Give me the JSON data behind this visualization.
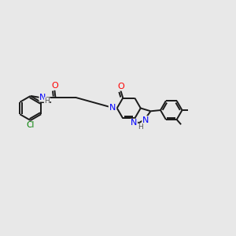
{
  "bg_color": "#e8e8e8",
  "bond_color": "#1a1a1a",
  "atom_colors": {
    "O": "#ff0000",
    "N": "#0000ff",
    "Cl": "#008000",
    "C": "#1a1a1a",
    "H": "#555555"
  },
  "line_width": 1.4,
  "figsize": [
    3.0,
    3.0
  ],
  "dpi": 100
}
